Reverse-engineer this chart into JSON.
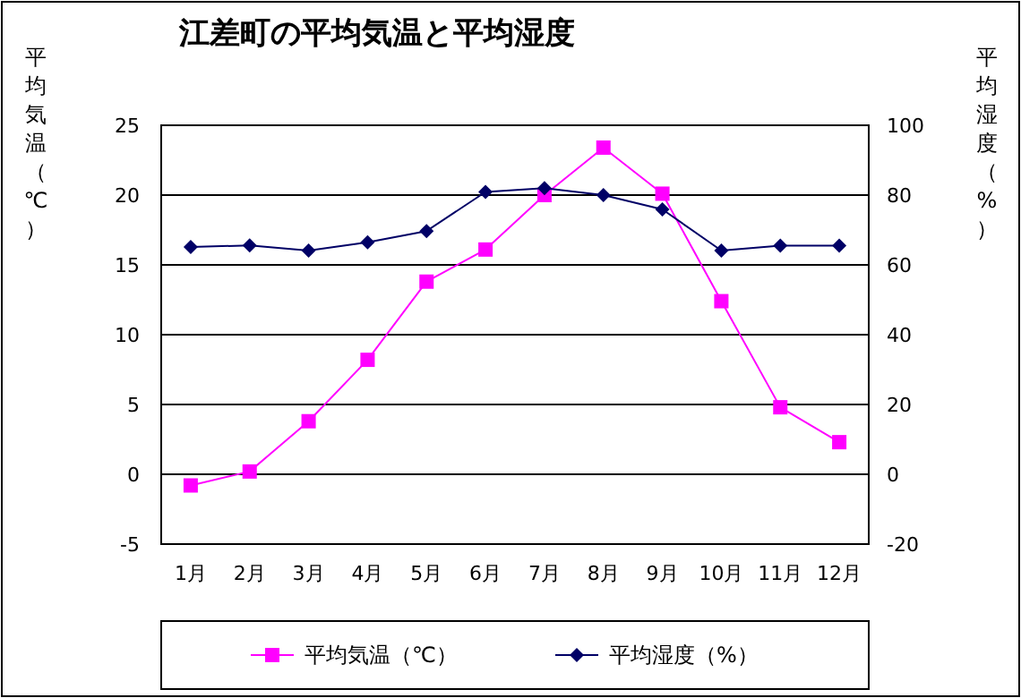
{
  "chart_data": {
    "type": "line",
    "title": "江差町の平均気温と平均湿度",
    "ylabel": "平均気温（℃）",
    "y2label": "平均湿度（%）",
    "categories": [
      "1月",
      "2月",
      "3月",
      "4月",
      "5月",
      "6月",
      "7月",
      "8月",
      "9月",
      "10月",
      "11月",
      "12月"
    ],
    "series": [
      {
        "name": "平均気温（℃）",
        "color": "#ff00ff",
        "marker": "square",
        "values": [
          -0.8,
          0.2,
          3.8,
          8.2,
          13.8,
          16.1,
          20.0,
          23.4,
          20.1,
          12.4,
          4.8,
          2.3
        ]
      },
      {
        "name": "平均湿度（%）",
        "color": "#000066",
        "marker": "diamond",
        "axis": "y2",
        "values": [
          65.1,
          65.6,
          64.1,
          66.5,
          69.7,
          80.9,
          82.0,
          80.0,
          75.9,
          64.1,
          65.5,
          65.5
        ]
      }
    ],
    "ylim": [
      -5,
      25
    ],
    "yticks": [
      -5,
      0,
      5,
      10,
      15,
      20,
      25
    ],
    "y2lim": [
      -20,
      100
    ],
    "y2ticks": [
      -20,
      0,
      20,
      40,
      60,
      80,
      100
    ],
    "grid": "y",
    "legend": "bottom"
  }
}
